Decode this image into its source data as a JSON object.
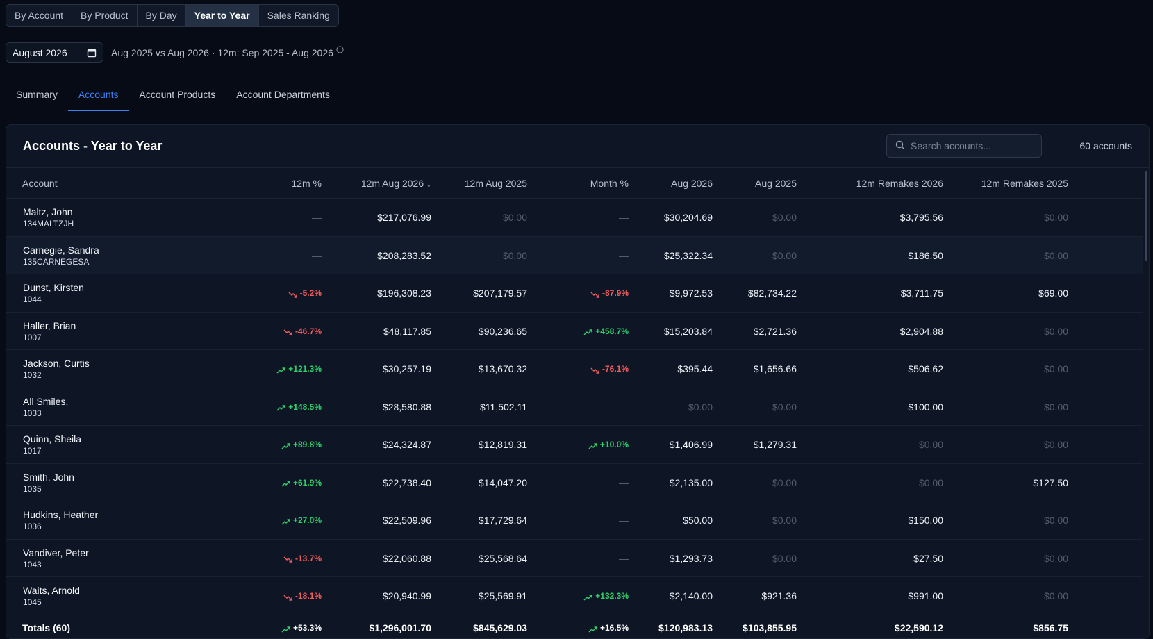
{
  "view_tabs": [
    "By Account",
    "By Product",
    "By Day",
    "Year to Year",
    "Sales Ranking"
  ],
  "active_view": "Year to Year",
  "month_picker": {
    "value": "August 2026",
    "icon": "calendar-icon"
  },
  "period_description": "Aug 2025 vs Aug 2026 · 12m: Sep 2025 - Aug 2026",
  "sub_tabs": [
    "Summary",
    "Accounts",
    "Account Products",
    "Account Departments"
  ],
  "active_sub_tab": "Accounts",
  "card": {
    "title": "Accounts - Year to Year",
    "search_placeholder": "Search accounts...",
    "account_count": "60 accounts"
  },
  "columns": {
    "account": "Account",
    "pct12m": "12m %",
    "m12_2026": "12m Aug 2026 ↓",
    "m12_2025": "12m Aug 2025",
    "month_pct": "Month %",
    "aug2026": "Aug 2026",
    "aug2025": "Aug 2025",
    "remakes2026": "12m Remakes 2026",
    "remakes2025": "12m Remakes 2025"
  },
  "rows": [
    {
      "name": "Maltz, John",
      "id": "134MALTZJH",
      "pct12m": "—",
      "pct12m_dir": "none",
      "m12_2026": "$217,076.99",
      "m12_2025": "$0.00",
      "month_pct": "—",
      "month_dir": "none",
      "aug2026": "$30,204.69",
      "aug2025": "$0.00",
      "remakes2026": "$3,795.56",
      "remakes2025": "$0.00"
    },
    {
      "name": "Carnegie, Sandra",
      "id": "135CARNEGESA",
      "pct12m": "—",
      "pct12m_dir": "none",
      "m12_2026": "$208,283.52",
      "m12_2025": "$0.00",
      "month_pct": "—",
      "month_dir": "none",
      "aug2026": "$25,322.34",
      "aug2025": "$0.00",
      "remakes2026": "$186.50",
      "remakes2025": "$0.00"
    },
    {
      "name": "Dunst, Kirsten",
      "id": "1044",
      "pct12m": "-5.2%",
      "pct12m_dir": "down",
      "m12_2026": "$196,308.23",
      "m12_2025": "$207,179.57",
      "month_pct": "-87.9%",
      "month_dir": "down",
      "aug2026": "$9,972.53",
      "aug2025": "$82,734.22",
      "remakes2026": "$3,711.75",
      "remakes2025": "$69.00"
    },
    {
      "name": "Haller, Brian",
      "id": "1007",
      "pct12m": "-46.7%",
      "pct12m_dir": "down",
      "m12_2026": "$48,117.85",
      "m12_2025": "$90,236.65",
      "month_pct": "+458.7%",
      "month_dir": "up",
      "aug2026": "$15,203.84",
      "aug2025": "$2,721.36",
      "remakes2026": "$2,904.88",
      "remakes2025": "$0.00"
    },
    {
      "name": "Jackson, Curtis",
      "id": "1032",
      "pct12m": "+121.3%",
      "pct12m_dir": "up",
      "m12_2026": "$30,257.19",
      "m12_2025": "$13,670.32",
      "month_pct": "-76.1%",
      "month_dir": "down",
      "aug2026": "$395.44",
      "aug2025": "$1,656.66",
      "remakes2026": "$506.62",
      "remakes2025": "$0.00"
    },
    {
      "name": "All Smiles,",
      "id": "1033",
      "pct12m": "+148.5%",
      "pct12m_dir": "up",
      "m12_2026": "$28,580.88",
      "m12_2025": "$11,502.11",
      "month_pct": "—",
      "month_dir": "none",
      "aug2026": "$0.00",
      "aug2025": "$0.00",
      "remakes2026": "$100.00",
      "remakes2025": "$0.00"
    },
    {
      "name": "Quinn, Sheila",
      "id": "1017",
      "pct12m": "+89.8%",
      "pct12m_dir": "up",
      "m12_2026": "$24,324.87",
      "m12_2025": "$12,819.31",
      "month_pct": "+10.0%",
      "month_dir": "up",
      "aug2026": "$1,406.99",
      "aug2025": "$1,279.31",
      "remakes2026": "$0.00",
      "remakes2025": "$0.00"
    },
    {
      "name": "Smith, John",
      "id": "1035",
      "pct12m": "+61.9%",
      "pct12m_dir": "up",
      "m12_2026": "$22,738.40",
      "m12_2025": "$14,047.20",
      "month_pct": "—",
      "month_dir": "none",
      "aug2026": "$2,135.00",
      "aug2025": "$0.00",
      "remakes2026": "$0.00",
      "remakes2025": "$127.50"
    },
    {
      "name": "Hudkins, Heather",
      "id": "1036",
      "pct12m": "+27.0%",
      "pct12m_dir": "up",
      "m12_2026": "$22,509.96",
      "m12_2025": "$17,729.64",
      "month_pct": "—",
      "month_dir": "none",
      "aug2026": "$50.00",
      "aug2025": "$0.00",
      "remakes2026": "$150.00",
      "remakes2025": "$0.00"
    },
    {
      "name": "Vandiver, Peter",
      "id": "1043",
      "pct12m": "-13.7%",
      "pct12m_dir": "down",
      "m12_2026": "$22,060.88",
      "m12_2025": "$25,568.64",
      "month_pct": "—",
      "month_dir": "none",
      "aug2026": "$1,293.73",
      "aug2025": "$0.00",
      "remakes2026": "$27.50",
      "remakes2025": "$0.00"
    },
    {
      "name": "Waits, Arnold",
      "id": "1045",
      "pct12m": "-18.1%",
      "pct12m_dir": "down",
      "m12_2026": "$20,940.99",
      "m12_2025": "$25,569.91",
      "month_pct": "+132.3%",
      "month_dir": "up",
      "aug2026": "$2,140.00",
      "aug2025": "$921.36",
      "remakes2026": "$991.00",
      "remakes2025": "$0.00"
    }
  ],
  "totals": {
    "label": "Totals (60)",
    "pct12m": "+53.3%",
    "pct12m_dir": "up",
    "m12_2026": "$1,296,001.70",
    "m12_2025": "$845,629.03",
    "month_pct": "+16.5%",
    "month_dir": "up",
    "aug2026": "$120,983.13",
    "aug2025": "$103,855.95",
    "remakes2026": "$22,590.12",
    "remakes2025": "$856.75"
  },
  "colors": {
    "up": "#2fd06a",
    "down": "#f25c5c",
    "accent": "#3b82f6"
  }
}
